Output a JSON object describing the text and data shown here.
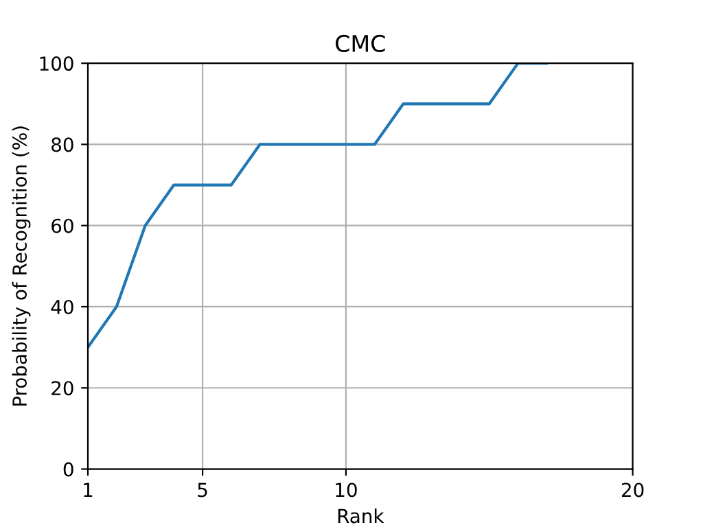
{
  "chart_data": {
    "type": "line",
    "title": "CMC",
    "xlabel": "Rank",
    "ylabel": "Probability of Recognition (%)",
    "x": [
      1,
      2,
      3,
      4,
      5,
      6,
      7,
      8,
      9,
      10,
      11,
      12,
      13,
      14,
      15,
      16,
      17
    ],
    "series": [
      {
        "color": "#1f77b4",
        "values": [
          30,
          40,
          60,
          70,
          70,
          70,
          80,
          80,
          80,
          80,
          80,
          90,
          90,
          90,
          90,
          100,
          100
        ]
      }
    ],
    "xlim": [
      1,
      20
    ],
    "xticks": [
      1,
      5,
      10,
      20
    ],
    "ylim": [
      0,
      100
    ],
    "yticks": [
      0,
      20,
      40,
      60,
      80,
      100
    ],
    "grid": true,
    "line_style": "solid"
  }
}
